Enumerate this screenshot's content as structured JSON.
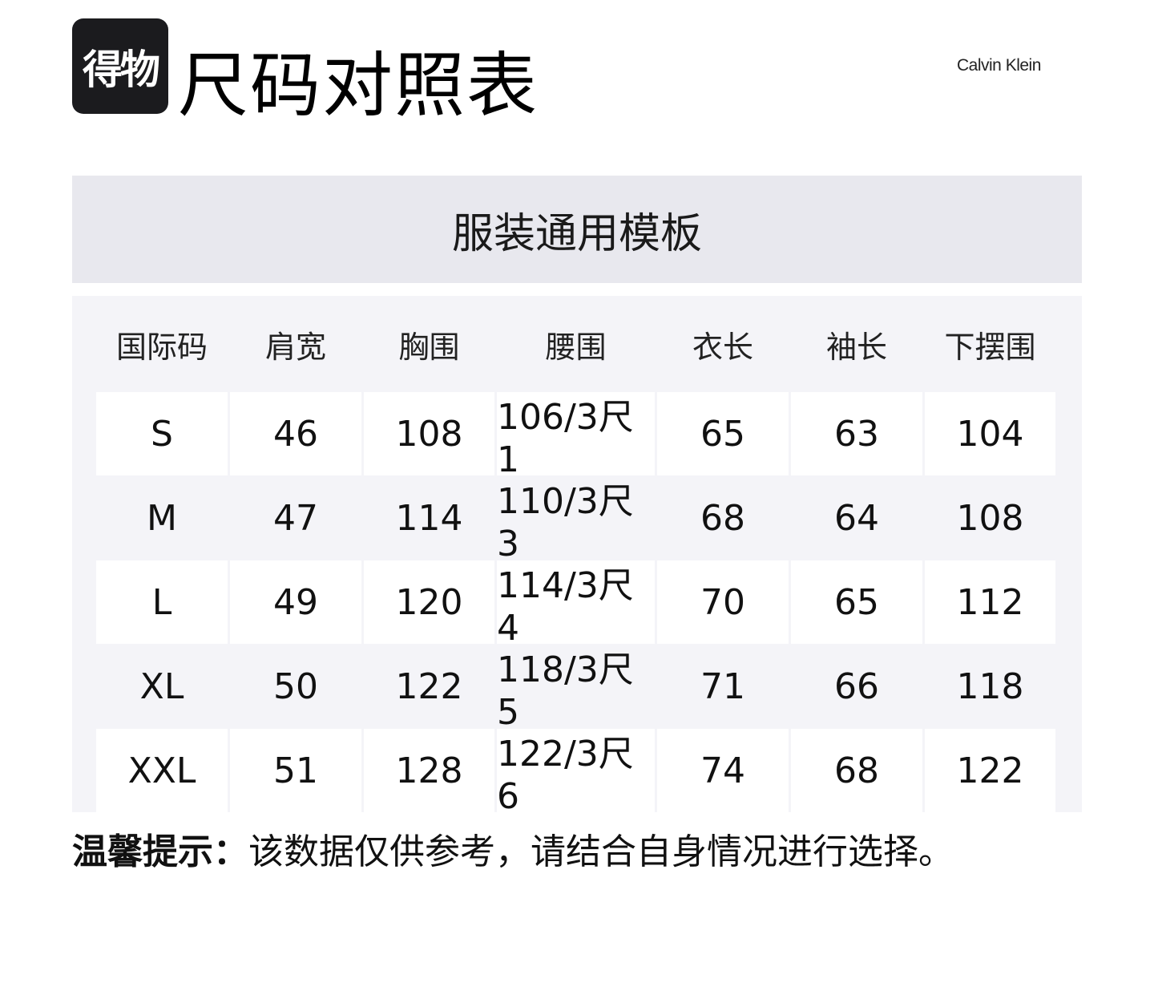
{
  "logo": {
    "text": "得物"
  },
  "title": "尺码对照表",
  "brand": "Calvin Klein",
  "section_title": "服装通用模板",
  "table": {
    "headers": [
      "国际码",
      "肩宽",
      "胸围",
      "腰围",
      "衣长",
      "袖长",
      "下摆围"
    ],
    "rows": [
      [
        "S",
        "46",
        "108",
        "106/3尺1",
        "65",
        "63",
        "104"
      ],
      [
        "M",
        "47",
        "114",
        "110/3尺3",
        "68",
        "64",
        "108"
      ],
      [
        "L",
        "49",
        "120",
        "114/3尺4",
        "70",
        "65",
        "112"
      ],
      [
        "XL",
        "50",
        "122",
        "118/3尺5",
        "71",
        "66",
        "118"
      ],
      [
        "XXL",
        "51",
        "128",
        "122/3尺6",
        "74",
        "68",
        "122"
      ]
    ]
  },
  "tip": {
    "label": "温馨提示：",
    "text": "该数据仅供参考，请结合自身情况进行选择。"
  },
  "colors": {
    "band": "#e8e8ee",
    "table_bg": "#f4f4f8",
    "logo_bg": "#1b1b1e"
  }
}
